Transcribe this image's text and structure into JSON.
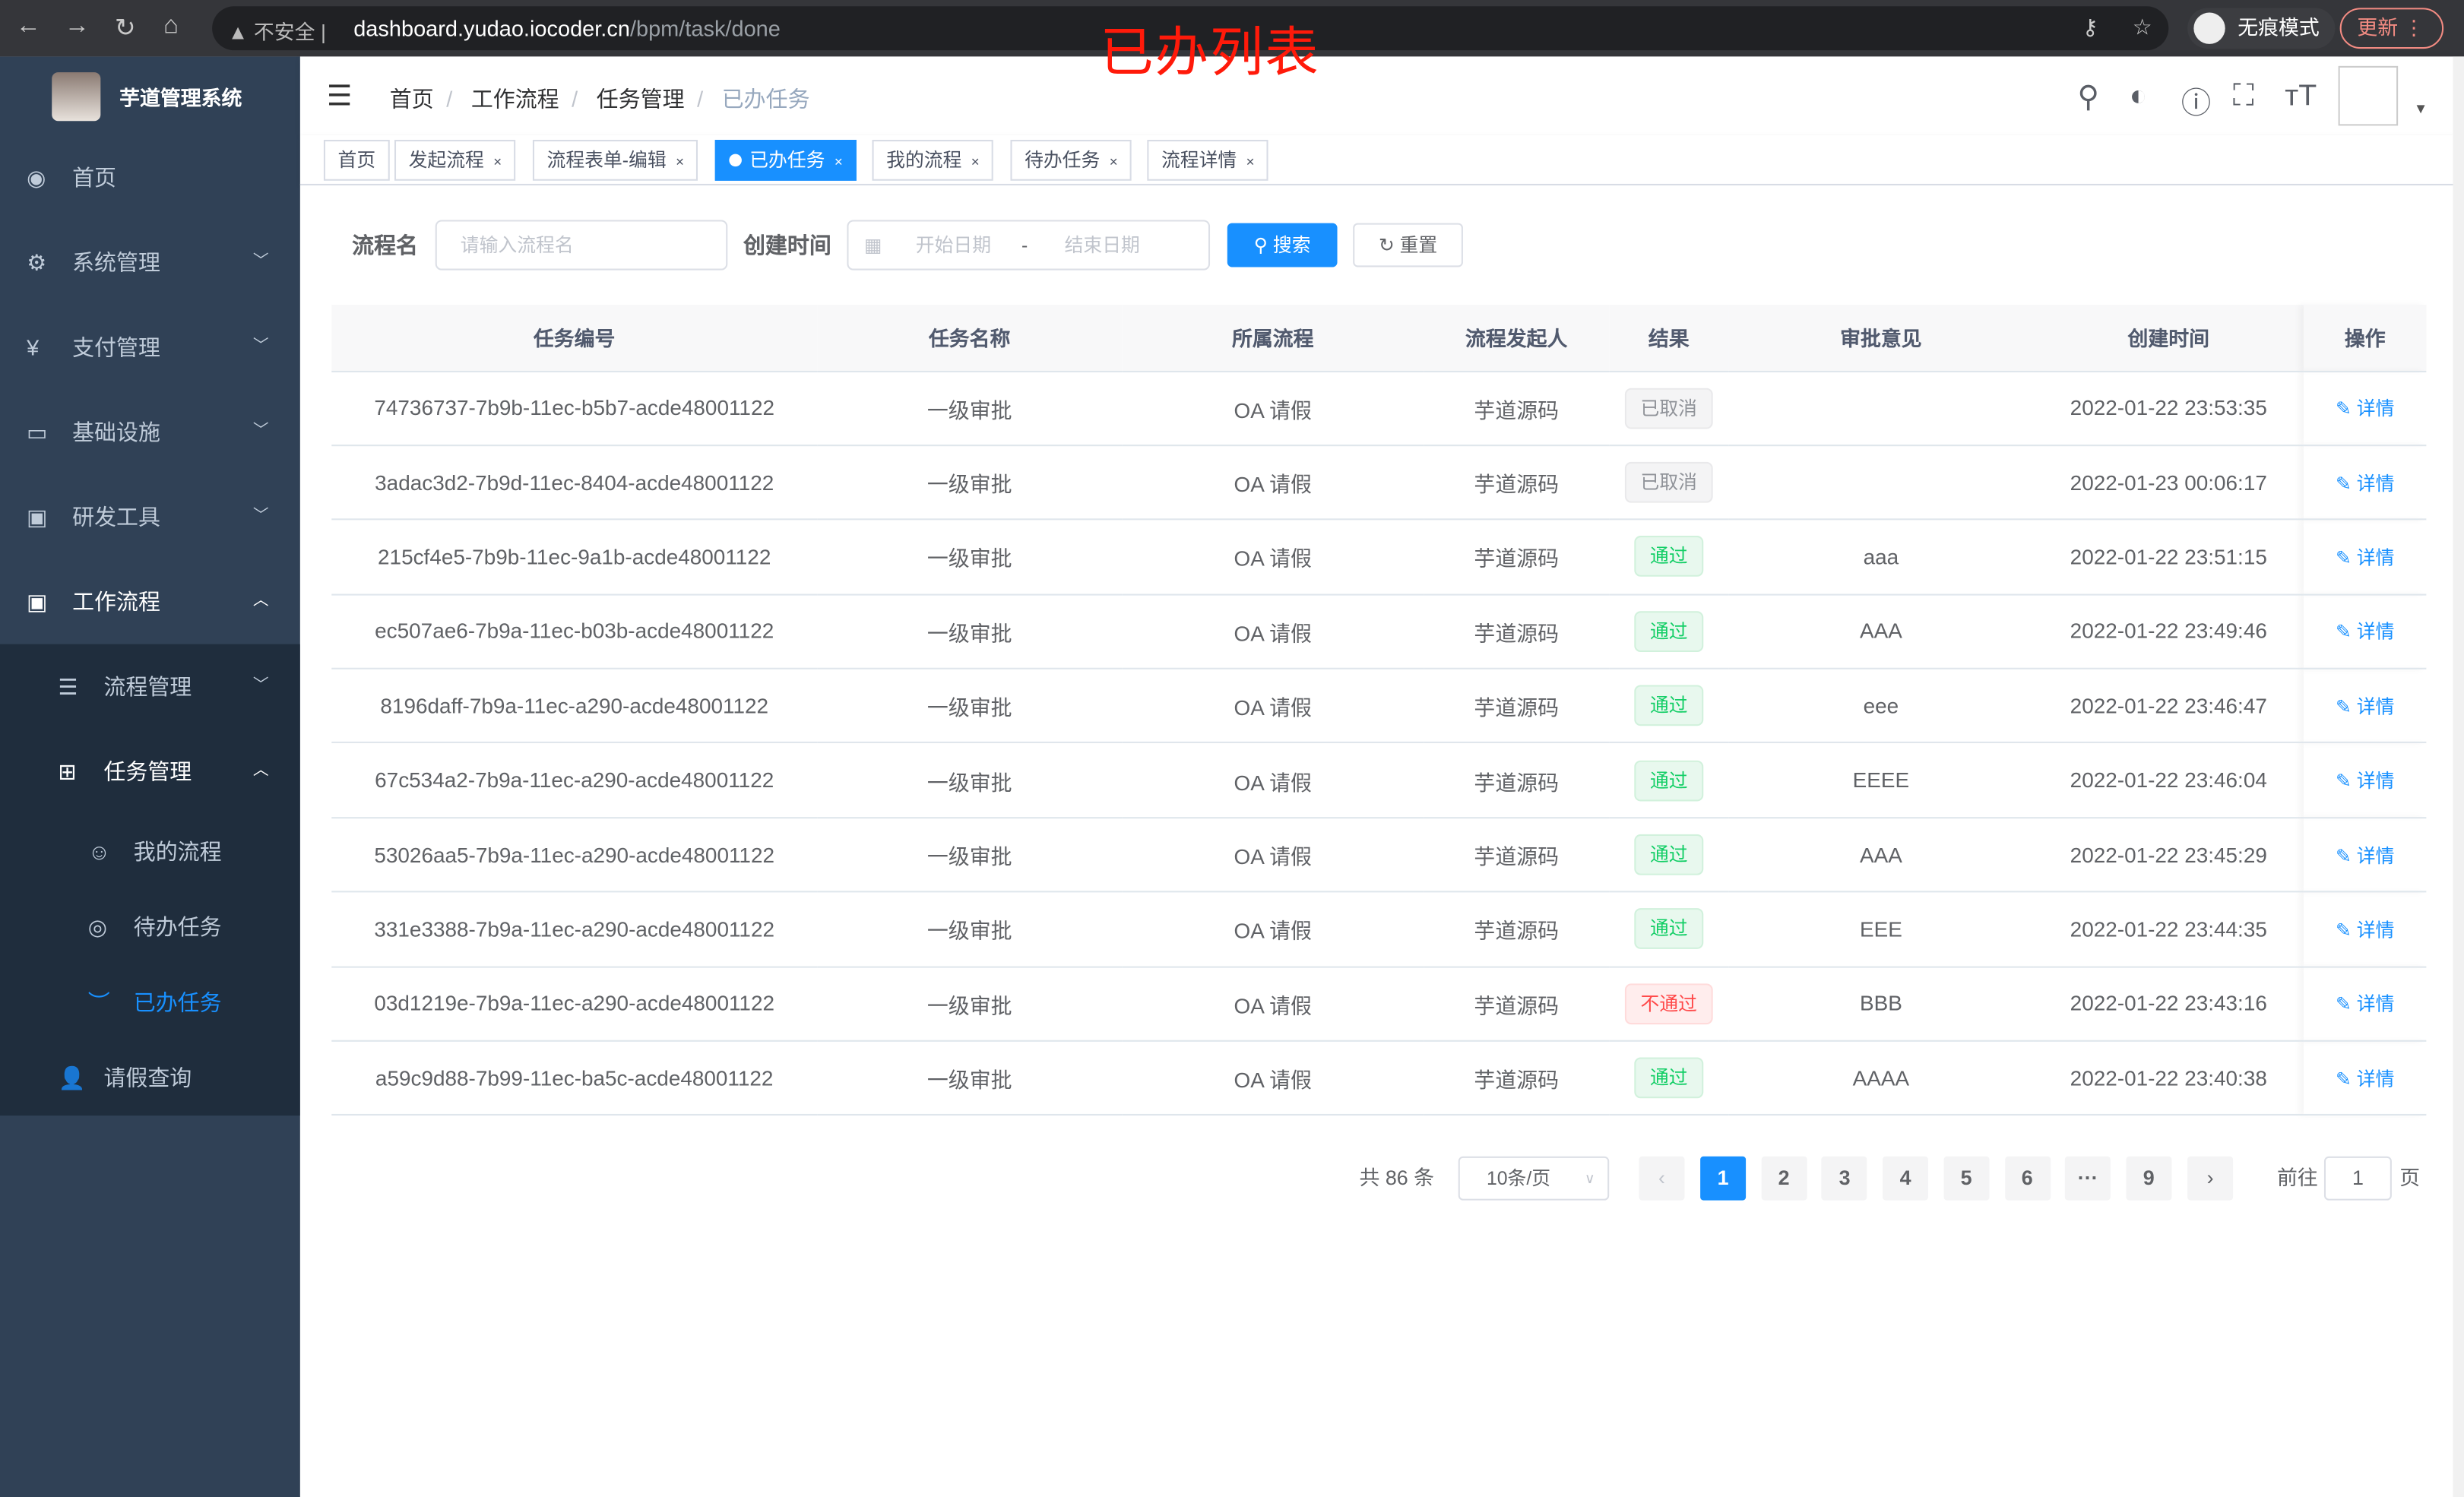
{
  "browser": {
    "security": "不安全",
    "url_host": "dashboard.yudao.iocoder.cn",
    "url_path": "/bpm/task/done",
    "incognito": "无痕模式",
    "update": "更新"
  },
  "overlay_title": "已办列表",
  "app": {
    "title": "芋道管理系统"
  },
  "sidebar": {
    "items": [
      {
        "label": "首页",
        "icon": "dashboard-icon"
      },
      {
        "label": "系统管理",
        "icon": "gear-icon"
      },
      {
        "label": "支付管理",
        "icon": "yen-icon"
      },
      {
        "label": "基础设施",
        "icon": "monitor-icon"
      },
      {
        "label": "研发工具",
        "icon": "toolbox-icon"
      },
      {
        "label": "工作流程",
        "icon": "toolbox-icon"
      }
    ],
    "workflow": [
      {
        "label": "流程管理"
      },
      {
        "label": "任务管理"
      },
      {
        "label": "请假查询"
      }
    ],
    "tasks": [
      {
        "label": "我的流程"
      },
      {
        "label": "待办任务"
      },
      {
        "label": "已办任务"
      }
    ]
  },
  "breadcrumb": [
    "首页",
    "工作流程",
    "任务管理",
    "已办任务"
  ],
  "tags": [
    "首页",
    "发起流程",
    "流程表单-编辑",
    "已办任务",
    "我的流程",
    "待办任务",
    "流程详情"
  ],
  "search": {
    "name_label": "流程名",
    "name_placeholder": "请输入流程名",
    "time_label": "创建时间",
    "start_placeholder": "开始日期",
    "sep": "-",
    "end_placeholder": "结束日期",
    "search_btn": "搜索",
    "reset_btn": "重置"
  },
  "table": {
    "headers": [
      "任务编号",
      "任务名称",
      "所属流程",
      "流程发起人",
      "结果",
      "审批意见",
      "创建时间",
      "操作"
    ],
    "rows": [
      {
        "id": "74736737-7b9b-11ec-b5b7-acde48001122",
        "name": "一级审批",
        "process": "OA 请假",
        "starter": "芋道源码",
        "result": "已取消",
        "status": "cancel",
        "comment": "",
        "time": "2022-01-22 23:53:35",
        "action": "详情"
      },
      {
        "id": "3adac3d2-7b9d-11ec-8404-acde48001122",
        "name": "一级审批",
        "process": "OA 请假",
        "starter": "芋道源码",
        "result": "已取消",
        "status": "cancel",
        "comment": "",
        "time": "2022-01-23 00:06:17",
        "action": "详情"
      },
      {
        "id": "215cf4e5-7b9b-11ec-9a1b-acde48001122",
        "name": "一级审批",
        "process": "OA 请假",
        "starter": "芋道源码",
        "result": "通过",
        "status": "pass",
        "comment": "aaa",
        "time": "2022-01-22 23:51:15",
        "action": "详情"
      },
      {
        "id": "ec507ae6-7b9a-11ec-b03b-acde48001122",
        "name": "一级审批",
        "process": "OA 请假",
        "starter": "芋道源码",
        "result": "通过",
        "status": "pass",
        "comment": "AAA",
        "time": "2022-01-22 23:49:46",
        "action": "详情"
      },
      {
        "id": "8196daff-7b9a-11ec-a290-acde48001122",
        "name": "一级审批",
        "process": "OA 请假",
        "starter": "芋道源码",
        "result": "通过",
        "status": "pass",
        "comment": "eee",
        "time": "2022-01-22 23:46:47",
        "action": "详情"
      },
      {
        "id": "67c534a2-7b9a-11ec-a290-acde48001122",
        "name": "一级审批",
        "process": "OA 请假",
        "starter": "芋道源码",
        "result": "通过",
        "status": "pass",
        "comment": "EEEE",
        "time": "2022-01-22 23:46:04",
        "action": "详情"
      },
      {
        "id": "53026aa5-7b9a-11ec-a290-acde48001122",
        "name": "一级审批",
        "process": "OA 请假",
        "starter": "芋道源码",
        "result": "通过",
        "status": "pass",
        "comment": "AAA",
        "time": "2022-01-22 23:45:29",
        "action": "详情"
      },
      {
        "id": "331e3388-7b9a-11ec-a290-acde48001122",
        "name": "一级审批",
        "process": "OA 请假",
        "starter": "芋道源码",
        "result": "通过",
        "status": "pass",
        "comment": "EEE",
        "time": "2022-01-22 23:44:35",
        "action": "详情"
      },
      {
        "id": "03d1219e-7b9a-11ec-a290-acde48001122",
        "name": "一级审批",
        "process": "OA 请假",
        "starter": "芋道源码",
        "result": "不通过",
        "status": "fail",
        "comment": "BBB",
        "time": "2022-01-22 23:43:16",
        "action": "详情"
      },
      {
        "id": "a59c9d88-7b99-11ec-ba5c-acde48001122",
        "name": "一级审批",
        "process": "OA 请假",
        "starter": "芋道源码",
        "result": "通过",
        "status": "pass",
        "comment": "AAAA",
        "time": "2022-01-22 23:40:38",
        "action": "详情"
      }
    ]
  },
  "pagination": {
    "total": "共 86 条",
    "page_size": "10条/页",
    "pages": [
      "1",
      "2",
      "3",
      "4",
      "5",
      "6",
      "···",
      "9"
    ],
    "current": "1",
    "goto_label": "前往",
    "goto_value": "1",
    "goto_suffix": "页"
  }
}
